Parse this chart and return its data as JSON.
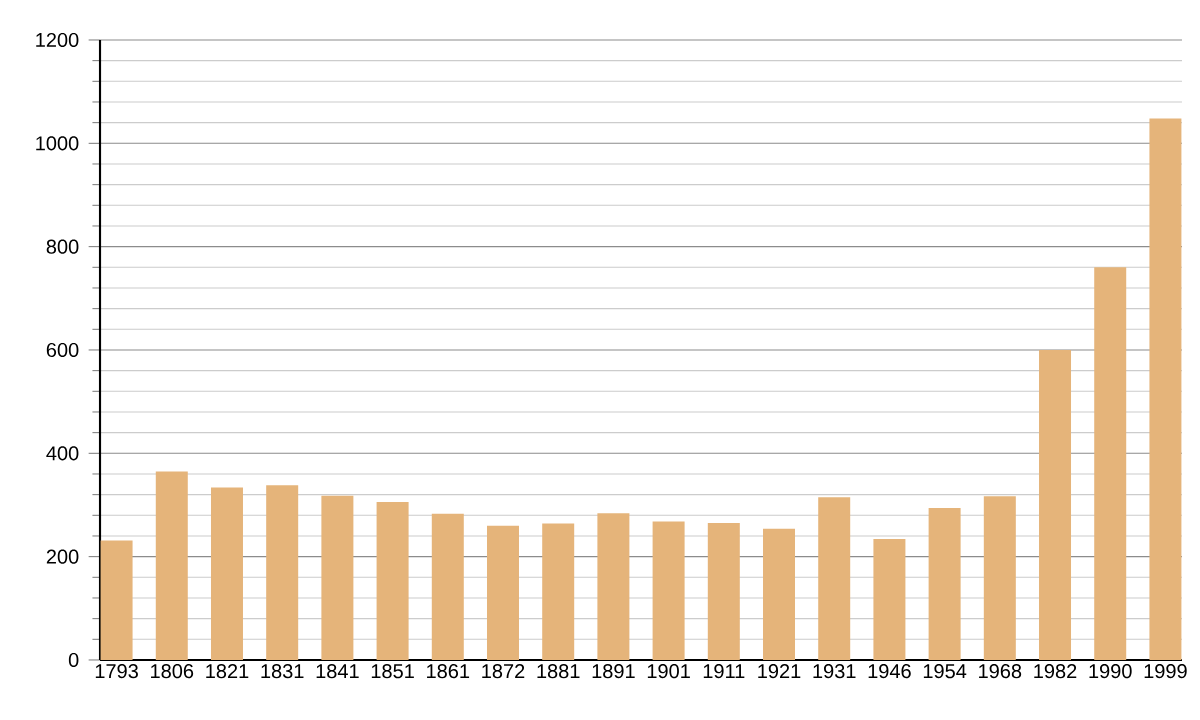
{
  "chart_data": {
    "type": "bar",
    "categories": [
      "1793",
      "1806",
      "1821",
      "1831",
      "1841",
      "1851",
      "1861",
      "1872",
      "1881",
      "1891",
      "1901",
      "1911",
      "1921",
      "1931",
      "1946",
      "1954",
      "1968",
      "1982",
      "1990",
      "1999"
    ],
    "values": [
      231,
      365,
      334,
      338,
      318,
      306,
      283,
      260,
      264,
      284,
      268,
      265,
      254,
      315,
      234,
      294,
      317,
      600,
      760,
      1048
    ],
    "color": "#e5b47a",
    "ylim": [
      0,
      1200
    ],
    "yticks": [
      0,
      200,
      400,
      600,
      800,
      1000,
      1200
    ],
    "grid": "y"
  }
}
